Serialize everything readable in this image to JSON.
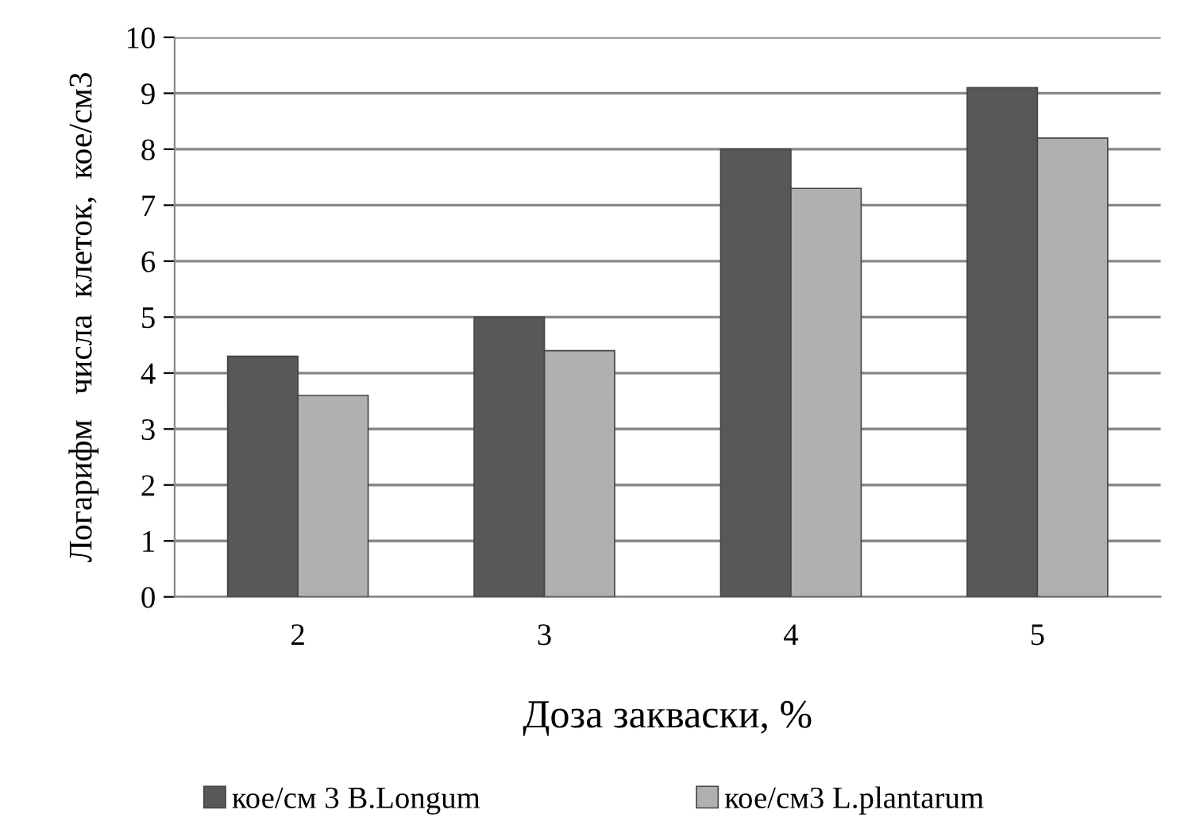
{
  "chart_data": {
    "type": "bar",
    "xlabel": "Доза закваски, %",
    "ylabel": "Логарифм   числа  клеток,  кое/см3",
    "categories": [
      "2",
      "3",
      "4",
      "5"
    ],
    "series": [
      {
        "name": "кое/см 3 B.Longum",
        "color": "#585858",
        "values": [
          4.3,
          5.0,
          8.0,
          9.1
        ]
      },
      {
        "name": "кое/см3 L.plantarum",
        "color": "#b0b0b0",
        "values": [
          3.6,
          4.4,
          7.3,
          8.2
        ]
      }
    ],
    "ylim": [
      0,
      10
    ],
    "yticks": [
      0,
      1,
      2,
      3,
      4,
      5,
      6,
      7,
      8,
      9,
      10
    ],
    "grid": "y",
    "legend": "bottom"
  }
}
